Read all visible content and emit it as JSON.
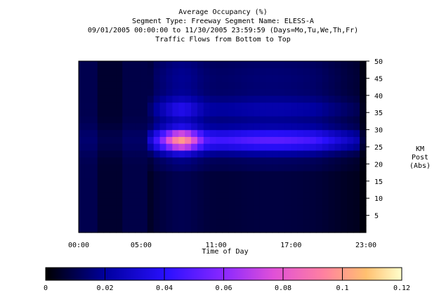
{
  "chart_data": {
    "type": "heatmap",
    "title": "Average Occupancy (%)",
    "subtitle_lines": [
      "Segment Type: Freeway Segment Name: ELESS-A",
      "09/01/2005 00:00:00 to 11/30/2005 23:59:59 (Days=Mo,Tu,We,Th,Fr)",
      "Traffic Flows from Bottom to Top"
    ],
    "xlabel": "Time of Day",
    "ylabel_lines": [
      "KM",
      "Post",
      "(Abs)"
    ],
    "x_tick_labels": [
      "00:00",
      "05:00",
      "11:00",
      "17:00",
      "23:00"
    ],
    "x_tick_values": [
      0,
      5,
      11,
      17,
      23
    ],
    "xlim": [
      0,
      23
    ],
    "y_tick_labels": [
      "5",
      "10",
      "15",
      "20",
      "25",
      "30",
      "35",
      "40",
      "45",
      "50"
    ],
    "y_tick_values": [
      5,
      10,
      15,
      20,
      25,
      30,
      35,
      40,
      45,
      50
    ],
    "ylim": [
      0,
      50
    ],
    "colorbar": {
      "tick_labels": [
        "0",
        "0.02",
        "0.04",
        "0.06",
        "0.08",
        "0.1",
        "0.12"
      ],
      "tick_values": [
        0,
        0.02,
        0.04,
        0.06,
        0.08,
        0.1,
        0.12
      ],
      "range": [
        0,
        0.12
      ],
      "colormap": "gnuplot-like black-blue-purple-pink-yellow"
    },
    "grid": false,
    "description_of_pattern": {
      "hour_bins": 23,
      "km_bins": 25,
      "base_low": 0.005,
      "peak_band_km": [
        24,
        30
      ],
      "peak_value": 0.105
    }
  }
}
